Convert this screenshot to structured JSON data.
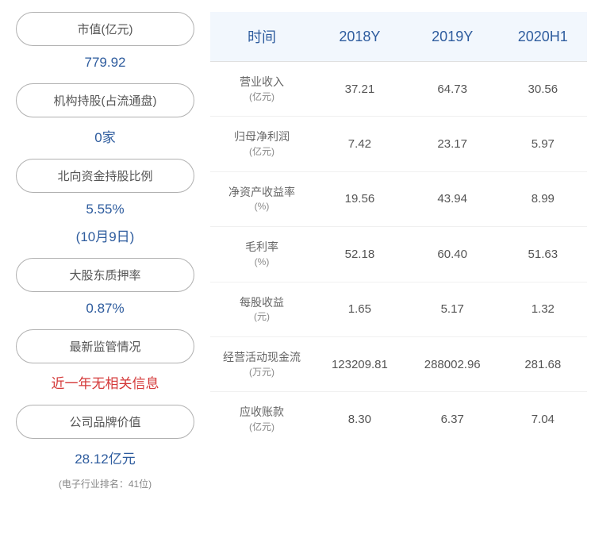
{
  "left": {
    "items": [
      {
        "label": "市值(亿元)",
        "value": "779.92",
        "color": "blue"
      },
      {
        "label": "机构持股(占流通盘)",
        "value": "0家",
        "color": "blue"
      },
      {
        "label": "北向资金持股比例",
        "value": "5.55%",
        "sub": "(10月9日)",
        "color": "blue"
      },
      {
        "label": "大股东质押率",
        "value": "0.87%",
        "color": "blue"
      },
      {
        "label": "最新监管情况",
        "value": "近一年无相关信息",
        "color": "red"
      },
      {
        "label": "公司品牌价值",
        "value": "28.12亿元",
        "note": "(电子行业排名：41位)",
        "color": "blue"
      }
    ]
  },
  "table": {
    "headers": [
      "时间",
      "2018Y",
      "2019Y",
      "2020H1"
    ],
    "rows": [
      {
        "metric": "营业收入",
        "unit": "(亿元)",
        "v1": "37.21",
        "v2": "64.73",
        "v3": "30.56"
      },
      {
        "metric": "归母净利润",
        "unit": "(亿元)",
        "v1": "7.42",
        "v2": "23.17",
        "v3": "5.97"
      },
      {
        "metric": "净资产收益率",
        "unit": "(%)",
        "v1": "19.56",
        "v2": "43.94",
        "v3": "8.99"
      },
      {
        "metric": "毛利率",
        "unit": "(%)",
        "v1": "52.18",
        "v2": "60.40",
        "v3": "51.63"
      },
      {
        "metric": "每股收益",
        "unit": "(元)",
        "v1": "1.65",
        "v2": "5.17",
        "v3": "1.32"
      },
      {
        "metric": "经营活动现金流",
        "unit": "(万元)",
        "v1": "123209.81",
        "v2": "288002.96",
        "v3": "281.68"
      },
      {
        "metric": "应收账款",
        "unit": "(亿元)",
        "v1": "8.30",
        "v2": "6.37",
        "v3": "7.04"
      }
    ]
  },
  "colors": {
    "header_bg": "#f2f7fd",
    "header_text": "#2e5c9e",
    "value_blue": "#2e5c9e",
    "value_red": "#d43838",
    "pill_border": "#b0b0b0",
    "body_text": "#555"
  }
}
